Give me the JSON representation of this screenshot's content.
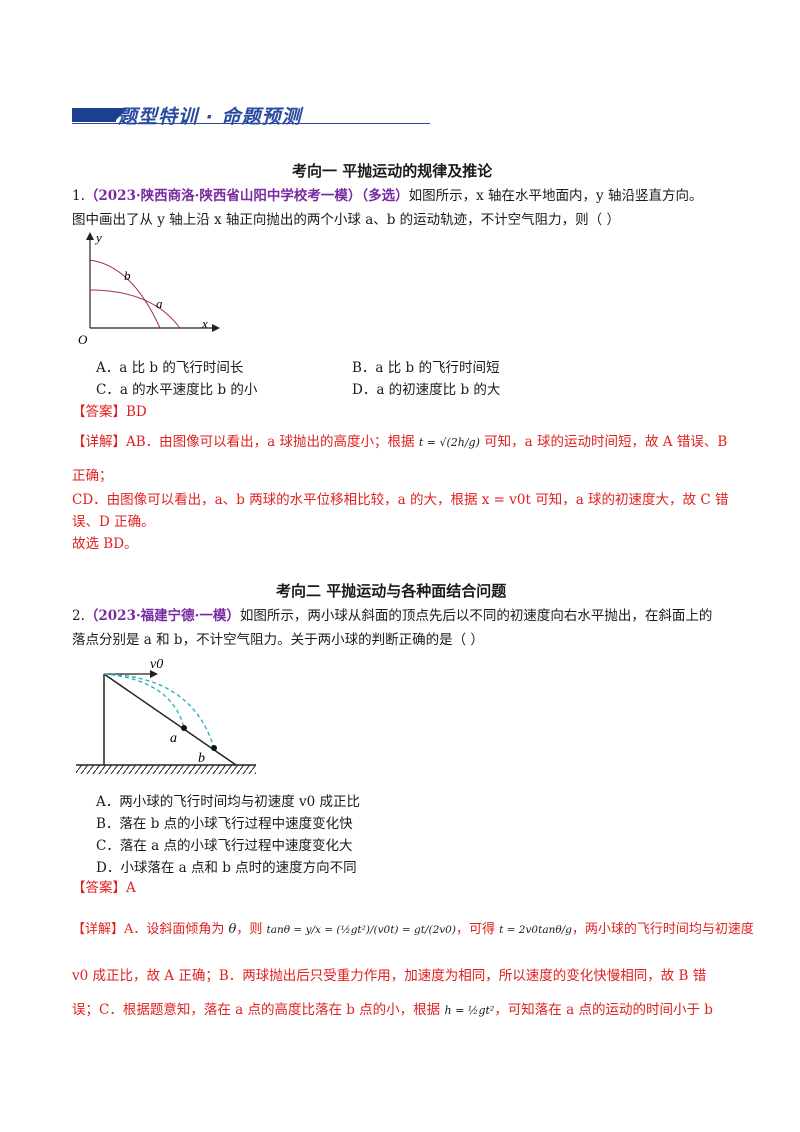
{
  "banner": {
    "title": "题型特训 · 命题预测"
  },
  "section1": {
    "title": "考向一  平抛运动的规律及推论",
    "q1": {
      "number": "1.",
      "source": "（2023·陕西商洛·陕西省山阳中学校考一模）（多选）",
      "stem_line1": "如图所示，x 轴在水平地面内，y 轴沿竖直方向。",
      "stem_line2": "图中画出了从 y 轴上沿 x 轴正向抛出的两个小球 a、b 的运动轨迹，不计空气阻力，则（     ）",
      "figure": {
        "y_label": "y",
        "x_label": "x",
        "origin": "O",
        "curve_b": "b",
        "curve_a": "a"
      },
      "options": {
        "A": "A．a 比 b 的飞行时间长",
        "B": "B．a 比 b 的飞行时间短",
        "C": "C．a 的水平速度比 b 的小",
        "D": "D．a 的初速度比 b 的大"
      },
      "answer": "【答案】BD",
      "detail_label": "【详解】",
      "detail_1a": "AB．由图像可以看出，a 球抛出的高度小；根据",
      "formula_t": "t = √(2h/g)",
      "detail_1b": "可知，a 球的运动时间短，故 A 错误、B",
      "detail_2": "正确；",
      "detail_3": "CD．由图像可以看出，a、b 两球的水平位移相比较，a 的大，根据 x = v0t 可知，a 球的初速度大，故 C 错",
      "detail_4": "误、D 正确。",
      "detail_5": "故选 BD。"
    }
  },
  "section2": {
    "title": "考向二  平抛运动与各种面结合问题",
    "q2": {
      "number": "2.",
      "source": "（2023·福建宁德·一模）",
      "stem_line1": "如图所示，两小球从斜面的顶点先后以不同的初速度向右水平抛出，在斜面上的",
      "stem_line2": "落点分别是 a 和 b，不计空气阻力。关于两小球的判断正确的是（        ）",
      "figure": {
        "v_label": "v0",
        "point_a": "a",
        "point_b": "b"
      },
      "options": {
        "A": "A．两小球的飞行时间均与初速度 v0 成正比",
        "B": "B．落在 b 点的小球飞行过程中速度变化快",
        "C": "C．落在 a 点的小球飞行过程中速度变化大",
        "D": "D．小球落在 a 点和 b 点时的速度方向不同"
      },
      "answer": "【答案】A",
      "detail_label": "【详解】",
      "detail_1a": "A．设斜面倾角为",
      "theta": "θ",
      "detail_1b": "，则",
      "formula_tan": "tanθ = y/x = (½gt²)/(v0t) = gt/(2v0)",
      "detail_1c": "，可得",
      "formula_t": "t = 2v0tanθ/g",
      "detail_1d": "，两小球的飞行时间均与初速度",
      "detail_2": "v0 成正比，故 A 正确；B．两球抛出后只受重力作用，加速度为相同，所以速度的变化快慢相同，故 B 错",
      "detail_3a": "误；C．根据题意知，落在 a 点的高度比落在 b 点的小，根据",
      "formula_h": "h = ½gt²",
      "detail_3b": "，可知落在 a 点的运动的时间小于 b"
    }
  }
}
